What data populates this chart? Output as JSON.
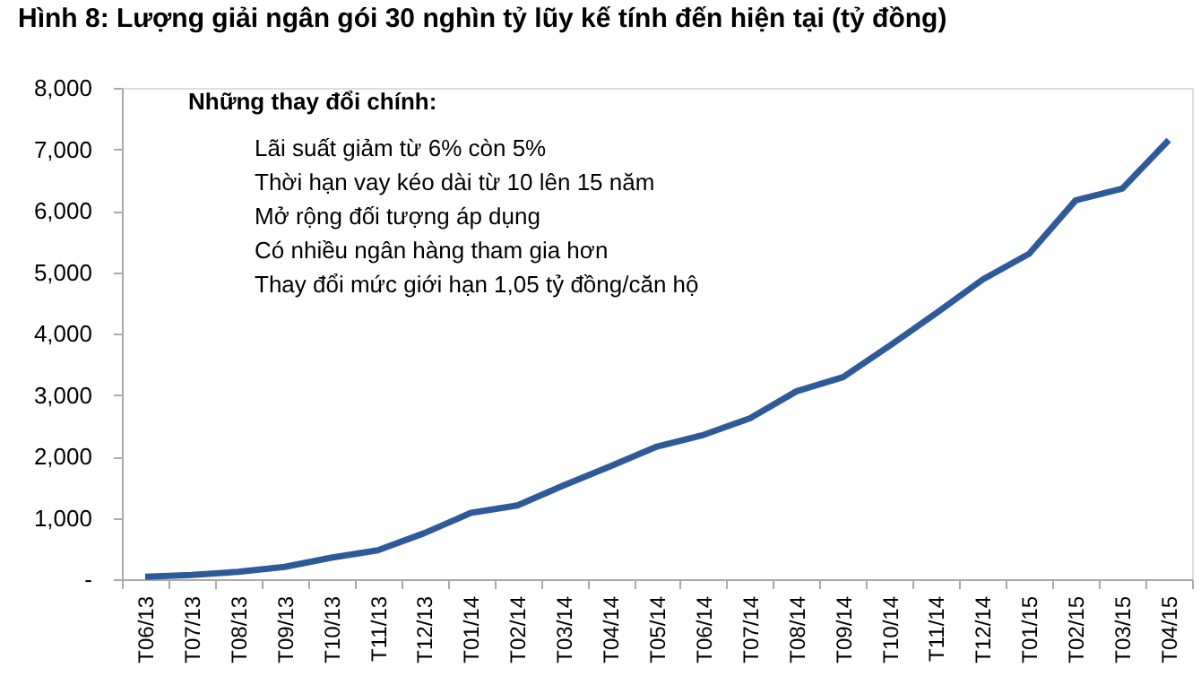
{
  "chart_data": {
    "type": "line",
    "title": "Hình 8: Lượng giải ngân gói 30 nghìn tỷ lũy kế tính đến hiện tại (tỷ đồng)",
    "categories": [
      "T06/13",
      "T07/13",
      "T08/13",
      "T09/13",
      "T10/13",
      "T11/13",
      "T12/13",
      "T01/14",
      "T02/14",
      "T03/14",
      "T04/14",
      "T05/14",
      "T06/14",
      "T07/14",
      "T08/14",
      "T09/14",
      "T10/14",
      "T11/14",
      "T12/14",
      "T01/15",
      "T02/15",
      "T03/15",
      "T04/15"
    ],
    "series": [
      {
        "color": "#2e5a9a",
        "values": [
          40,
          70,
          120,
          200,
          350,
          470,
          750,
          1080,
          1200,
          1530,
          1840,
          2160,
          2350,
          2620,
          3060,
          3290,
          3800,
          4330,
          4880,
          5300,
          6170,
          6360,
          7150
        ]
      }
    ],
    "ylim": [
      0,
      8000
    ],
    "yticks": [
      {
        "value": 0,
        "label": "-"
      },
      {
        "value": 1000,
        "label": "1,000"
      },
      {
        "value": 2000,
        "label": "2,000"
      },
      {
        "value": 3000,
        "label": "3,000"
      },
      {
        "value": 4000,
        "label": "4,000"
      },
      {
        "value": 5000,
        "label": "5,000"
      },
      {
        "value": 6000,
        "label": "6,000"
      },
      {
        "value": 7000,
        "label": "7,000"
      },
      {
        "value": 8000,
        "label": "8,000"
      }
    ],
    "grid": false,
    "marker": "none",
    "line_style": "solid",
    "annotations": [
      "Những thay đổi chính:",
      "Lãi suất giảm từ 6% còn 5%",
      "Thời hạn vay kéo dài từ 10 lên 15 năm",
      "Mở rộng đối tượng áp dụng",
      "Có nhiều ngân hàng tham gia hơn",
      "Thay đổi mức giới hạn 1,05 tỷ đồng/căn hộ"
    ]
  }
}
